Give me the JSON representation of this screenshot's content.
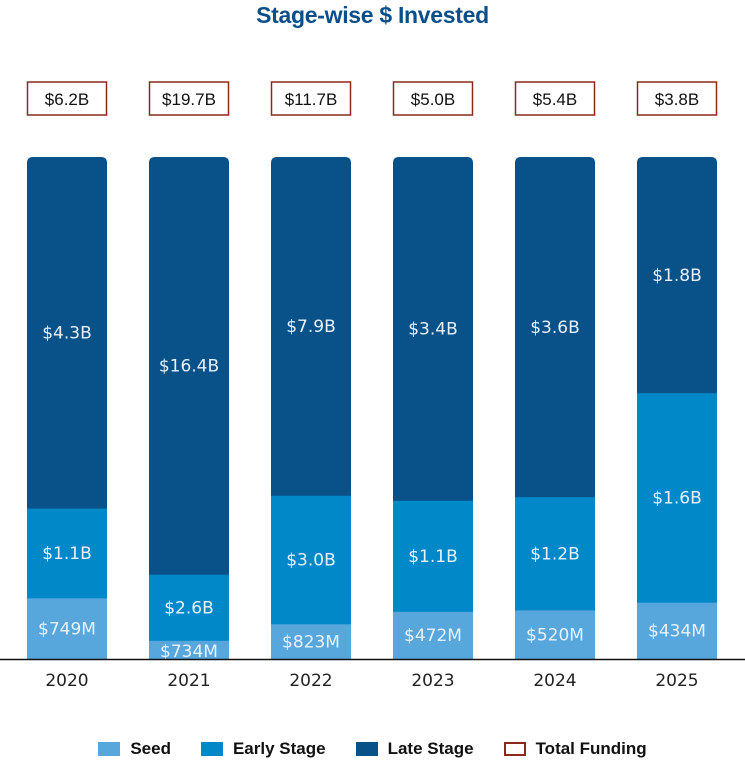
{
  "chart_data": {
    "type": "bar",
    "stacked": true,
    "normalized": true,
    "title": "Stage-wise $ Invested",
    "xlabel": "",
    "ylabel": "",
    "categories": [
      "2020",
      "2021",
      "2022",
      "2023",
      "2024",
      "2025"
    ],
    "series": [
      {
        "name": "Seed",
        "color": "#58a7dc",
        "values": [
          749,
          734,
          823,
          472,
          520,
          434
        ],
        "unit": "$M",
        "labels": [
          "$749M",
          "$734M",
          "$823M",
          "$472M",
          "$520M",
          "$434M"
        ]
      },
      {
        "name": "Early Stage",
        "color": "#0088c8",
        "values": [
          1100,
          2600,
          3000,
          1100,
          1200,
          1600
        ],
        "unit": "$M",
        "labels": [
          "$1.1B",
          "$2.6B",
          "$3.0B",
          "$1.1B",
          "$1.2B",
          "$1.6B"
        ]
      },
      {
        "name": "Late Stage",
        "color": "#085189",
        "values": [
          4300,
          16400,
          7900,
          3400,
          3600,
          1800
        ],
        "unit": "$M",
        "labels": [
          "$4.3B",
          "$16.4B",
          "$7.9B",
          "$3.4B",
          "$3.6B",
          "$1.8B"
        ]
      }
    ],
    "totals": {
      "name": "Total Funding",
      "border_color": "#8b2a1a",
      "values": [
        6.2,
        19.7,
        11.7,
        5.0,
        5.4,
        3.8
      ],
      "unit": "$B",
      "labels": [
        "$6.2B",
        "$19.7B",
        "$11.7B",
        "$5.0B",
        "$5.4B",
        "$3.8B"
      ]
    },
    "legend": [
      "Seed",
      "Early Stage",
      "Late Stage",
      "Total Funding"
    ],
    "legend_position": "bottom",
    "grid": false,
    "ylim": [
      0,
      1
    ]
  },
  "legend": {
    "items": [
      {
        "label": "Seed",
        "color": "#58a7dc",
        "kind": "fill"
      },
      {
        "label": "Early Stage",
        "color": "#0088c8",
        "kind": "fill"
      },
      {
        "label": "Late Stage",
        "color": "#085189",
        "kind": "fill"
      },
      {
        "label": "Total Funding",
        "color": "#8b2a1a",
        "kind": "outline"
      }
    ]
  }
}
